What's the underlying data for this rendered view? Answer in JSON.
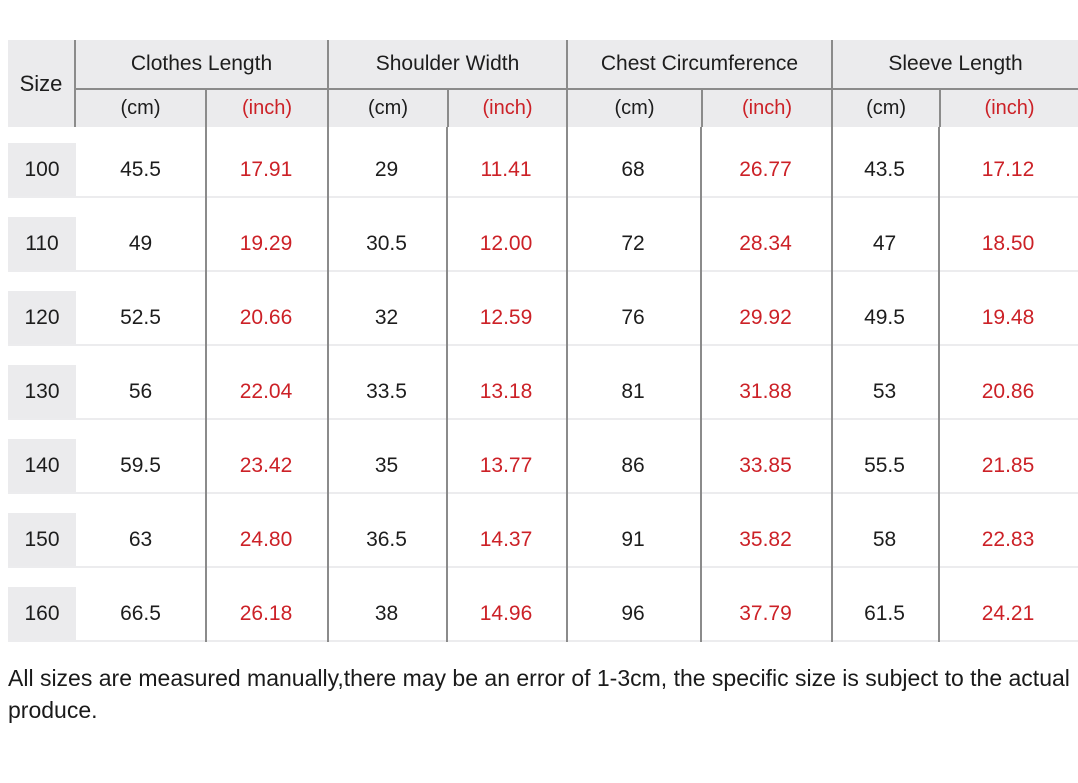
{
  "colors": {
    "accent_red": "#cc2127",
    "header_bg": "#ebebed",
    "border_dark": "#8b8b8b",
    "border_light": "#ececee",
    "text": "#1d1d1d"
  },
  "table": {
    "size_header": "Size",
    "groups": [
      {
        "label": "Clothes Length",
        "units": [
          "(cm)",
          "(inch)"
        ]
      },
      {
        "label": "Shoulder Width",
        "units": [
          "(cm)",
          "(inch)"
        ]
      },
      {
        "label": "Chest Circumference",
        "units": [
          "(cm)",
          "(inch)"
        ]
      },
      {
        "label": "Sleeve Length",
        "units": [
          "(cm)",
          "(inch)"
        ]
      }
    ],
    "rows": [
      {
        "size": "100",
        "values": [
          "45.5",
          "17.91",
          "29",
          "11.41",
          "68",
          "26.77",
          "43.5",
          "17.12"
        ]
      },
      {
        "size": "110",
        "values": [
          "49",
          "19.29",
          "30.5",
          "12.00",
          "72",
          "28.34",
          "47",
          "18.50"
        ]
      },
      {
        "size": "120",
        "values": [
          "52.5",
          "20.66",
          "32",
          "12.59",
          "76",
          "29.92",
          "49.5",
          "19.48"
        ]
      },
      {
        "size": "130",
        "values": [
          "56",
          "22.04",
          "33.5",
          "13.18",
          "81",
          "31.88",
          "53",
          "20.86"
        ]
      },
      {
        "size": "140",
        "values": [
          "59.5",
          "23.42",
          "35",
          "13.77",
          "86",
          "33.85",
          "55.5",
          "21.85"
        ]
      },
      {
        "size": "150",
        "values": [
          "63",
          "24.80",
          "36.5",
          "14.37",
          "91",
          "35.82",
          "58",
          "22.83"
        ]
      },
      {
        "size": "160",
        "values": [
          "66.5",
          "26.18",
          "38",
          "14.96",
          "96",
          "37.79",
          "61.5",
          "24.21"
        ]
      }
    ]
  },
  "footnote": "All sizes are measured manually,there may be an error of 1-3cm, the specific size is subject to the actual produce."
}
